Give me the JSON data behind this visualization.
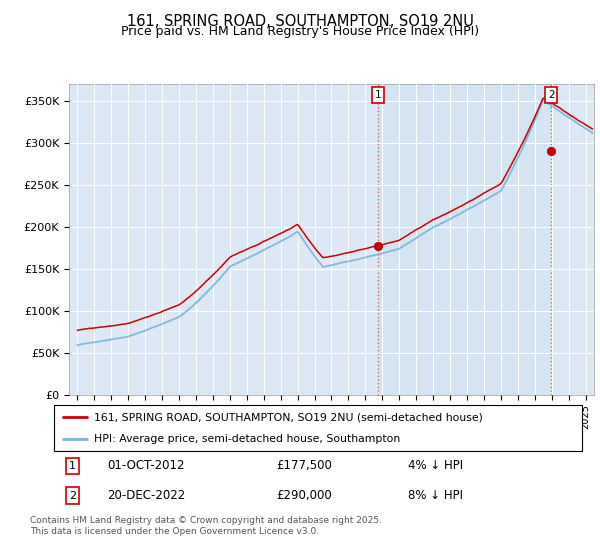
{
  "title": "161, SPRING ROAD, SOUTHAMPTON, SO19 2NU",
  "subtitle": "Price paid vs. HM Land Registry's House Price Index (HPI)",
  "ylabel_ticks": [
    "£0",
    "£50K",
    "£100K",
    "£150K",
    "£200K",
    "£250K",
    "£300K",
    "£350K"
  ],
  "ylabel_values": [
    0,
    50000,
    100000,
    150000,
    200000,
    250000,
    300000,
    350000
  ],
  "ylim": [
    0,
    370000
  ],
  "xlim_start": 1994.5,
  "xlim_end": 2025.5,
  "hpi_color": "#7ab4d8",
  "price_color": "#cc0000",
  "marker1_x": 2012.75,
  "marker1_y": 177500,
  "marker2_x": 2022.97,
  "marker2_y": 290000,
  "legend_line1": "161, SPRING ROAD, SOUTHAMPTON, SO19 2NU (semi-detached house)",
  "legend_line2": "HPI: Average price, semi-detached house, Southampton",
  "footer": "Contains HM Land Registry data © Crown copyright and database right 2025.\nThis data is licensed under the Open Government Licence v3.0.",
  "bg_color_main": "#dce8f5",
  "bg_color_highlight": "#daeaf8",
  "plot_bg": "#dce8f5",
  "xticks": [
    1995,
    1996,
    1997,
    1998,
    1999,
    2000,
    2001,
    2002,
    2003,
    2004,
    2005,
    2006,
    2007,
    2008,
    2009,
    2010,
    2011,
    2012,
    2013,
    2014,
    2015,
    2016,
    2017,
    2018,
    2019,
    2020,
    2021,
    2022,
    2023,
    2024,
    2025
  ],
  "hpi_scale_factor": 1.06,
  "noise_seed": 42
}
